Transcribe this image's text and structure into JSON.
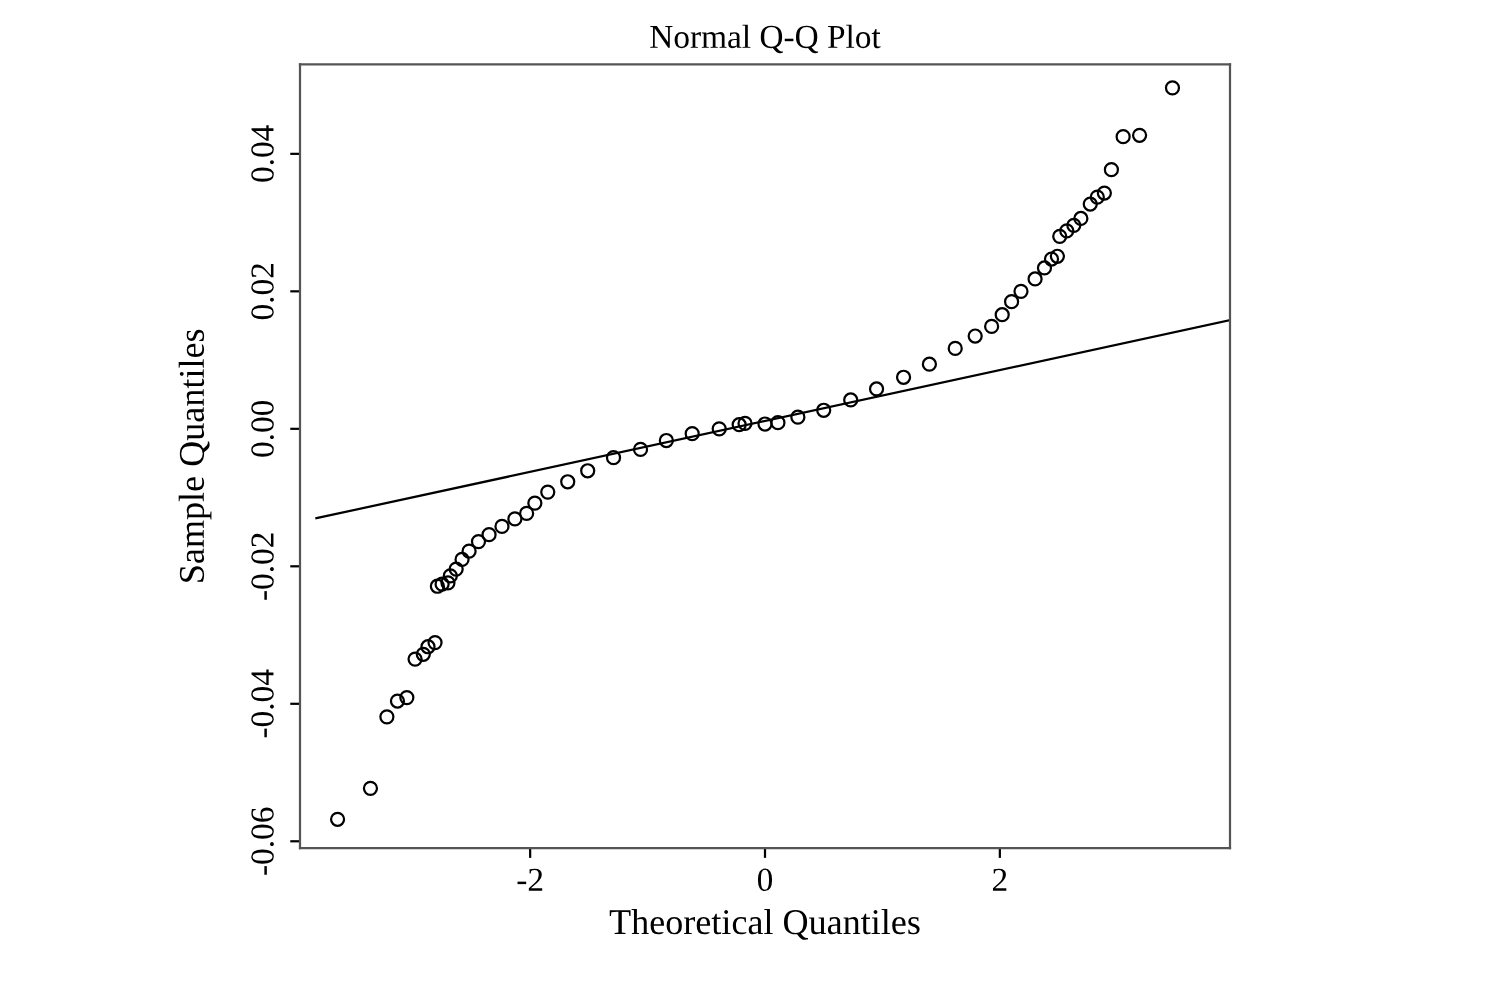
{
  "chart_data": {
    "type": "scatter",
    "title": "Normal Q-Q Plot",
    "xlabel": "Theoretical Quantiles",
    "ylabel": "Sample Quantiles",
    "xlim": [
      -3.96,
      3.96
    ],
    "ylim": [
      -0.061,
      0.053
    ],
    "xticks": [
      -2,
      0,
      2
    ],
    "yticks": [
      {
        "value": -0.06,
        "label": "-0.06"
      },
      {
        "value": -0.04,
        "label": "-0.04"
      },
      {
        "value": -0.02,
        "label": "-0.02"
      },
      {
        "value": 0,
        "label": "0.00"
      },
      {
        "value": 0.02,
        "label": "0.02"
      },
      {
        "value": 0.04,
        "label": "0.04"
      }
    ],
    "grid": false,
    "legend": false,
    "marker": "circle",
    "series": [
      {
        "color": "#000000",
        "x": [
          -3.64,
          -3.36,
          -3.22,
          -3.13,
          -3.05,
          -2.98,
          -2.91,
          -2.87,
          -2.81,
          -2.79,
          -2.75,
          -2.7,
          -2.68,
          -2.63,
          -2.58,
          -2.52,
          -2.44,
          -2.35,
          -2.24,
          -2.13,
          -2.03,
          -1.96,
          -1.85,
          -1.68,
          -1.51,
          -1.29,
          -1.06,
          -0.84,
          -0.62,
          -0.39,
          -0.22,
          -0.17,
          0,
          0.11,
          0.28,
          0.5,
          0.73,
          0.95,
          1.18,
          1.4,
          1.62,
          1.79,
          1.93,
          2.02,
          2.1,
          2.18,
          2.3,
          2.38,
          2.44,
          2.49,
          2.51,
          2.57,
          2.63,
          2.69,
          2.77,
          2.83,
          2.89,
          2.95,
          3.05,
          3.19,
          3.47
        ],
        "values": [
          -0.0568,
          -0.0523,
          -0.0419,
          -0.0396,
          -0.0391,
          -0.0335,
          -0.0328,
          -0.0317,
          -0.0311,
          -0.0229,
          -0.0226,
          -0.0224,
          -0.0214,
          -0.0204,
          -0.019,
          -0.0178,
          -0.0164,
          -0.0154,
          -0.0142,
          -0.0131,
          -0.0123,
          -0.0108,
          -0.0092,
          -0.0077,
          -0.0061,
          -0.0042,
          -0.003,
          -0.0017,
          -0.0007,
          0.0,
          0.0006,
          0.0008,
          0.0007,
          0.0009,
          0.0017,
          0.0027,
          0.0042,
          0.0058,
          0.0075,
          0.0094,
          0.0117,
          0.0135,
          0.0149,
          0.0166,
          0.0185,
          0.02,
          0.0218,
          0.0234,
          0.0247,
          0.0251,
          0.028,
          0.0288,
          0.0296,
          0.0306,
          0.0327,
          0.0337,
          0.0343,
          0.0377,
          0.0425,
          0.0427,
          0.0496
        ]
      },
      {
        "type": "line",
        "color": "#000000",
        "marker": "none",
        "line_style": "solid",
        "x": [
          -3.82,
          3.96
        ],
        "values": [
          -0.013,
          0.0158
        ]
      }
    ]
  }
}
